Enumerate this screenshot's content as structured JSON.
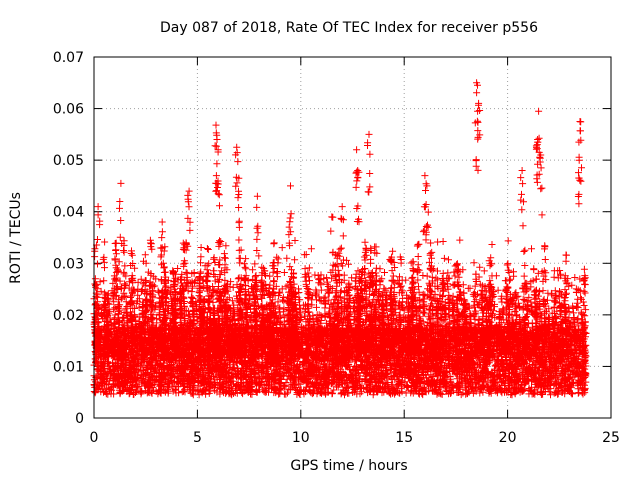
{
  "chart_data": {
    "type": "scatter",
    "title": "Day 087 of 2018, Rate Of TEC Index for receiver p556",
    "xlabel": "GPS time / hours",
    "ylabel": "ROTI / TECUs",
    "xlim": [
      0,
      25
    ],
    "ylim": [
      0,
      0.07
    ],
    "x_ticks": [
      0,
      5,
      10,
      15,
      20,
      25
    ],
    "x_tick_labels": [
      "0",
      "5",
      "10",
      "15",
      "20",
      "25"
    ],
    "y_ticks": [
      0,
      0.01,
      0.02,
      0.03,
      0.04,
      0.05,
      0.06,
      0.07
    ],
    "y_tick_labels": [
      "0",
      "0.01",
      "0.02",
      "0.03",
      "0.04",
      "0.05",
      "0.06",
      "0.07"
    ],
    "grid": true,
    "marker": "plus",
    "series_color": "#ff0000",
    "series": [
      {
        "name": "ROTI",
        "description_note": "dense band of ROTI samples from ~0.004 to ~0.035 TECU/s across 0-23.8 h",
        "x_range": [
          0.0,
          23.8
        ],
        "typical_range": [
          0.004,
          0.035
        ],
        "peaks": [
          {
            "x": 0.2,
            "y": 0.041
          },
          {
            "x": 1.3,
            "y": 0.0455
          },
          {
            "x": 3.3,
            "y": 0.038
          },
          {
            "x": 4.6,
            "y": 0.044
          },
          {
            "x": 5.9,
            "y": 0.0568
          },
          {
            "x": 5.95,
            "y": 0.054
          },
          {
            "x": 6.0,
            "y": 0.052
          },
          {
            "x": 6.9,
            "y": 0.0525
          },
          {
            "x": 7.0,
            "y": 0.0465
          },
          {
            "x": 7.9,
            "y": 0.043
          },
          {
            "x": 9.5,
            "y": 0.045
          },
          {
            "x": 11.5,
            "y": 0.039
          },
          {
            "x": 12.0,
            "y": 0.041
          },
          {
            "x": 12.7,
            "y": 0.052
          },
          {
            "x": 12.75,
            "y": 0.048
          },
          {
            "x": 13.3,
            "y": 0.055
          },
          {
            "x": 16.0,
            "y": 0.047
          },
          {
            "x": 16.1,
            "y": 0.045
          },
          {
            "x": 18.5,
            "y": 0.065
          },
          {
            "x": 18.6,
            "y": 0.061
          },
          {
            "x": 18.55,
            "y": 0.0595
          },
          {
            "x": 20.7,
            "y": 0.048
          },
          {
            "x": 21.5,
            "y": 0.0595
          },
          {
            "x": 21.45,
            "y": 0.054
          },
          {
            "x": 21.6,
            "y": 0.051
          },
          {
            "x": 23.5,
            "y": 0.0575
          },
          {
            "x": 23.45,
            "y": 0.0535
          }
        ]
      }
    ]
  }
}
